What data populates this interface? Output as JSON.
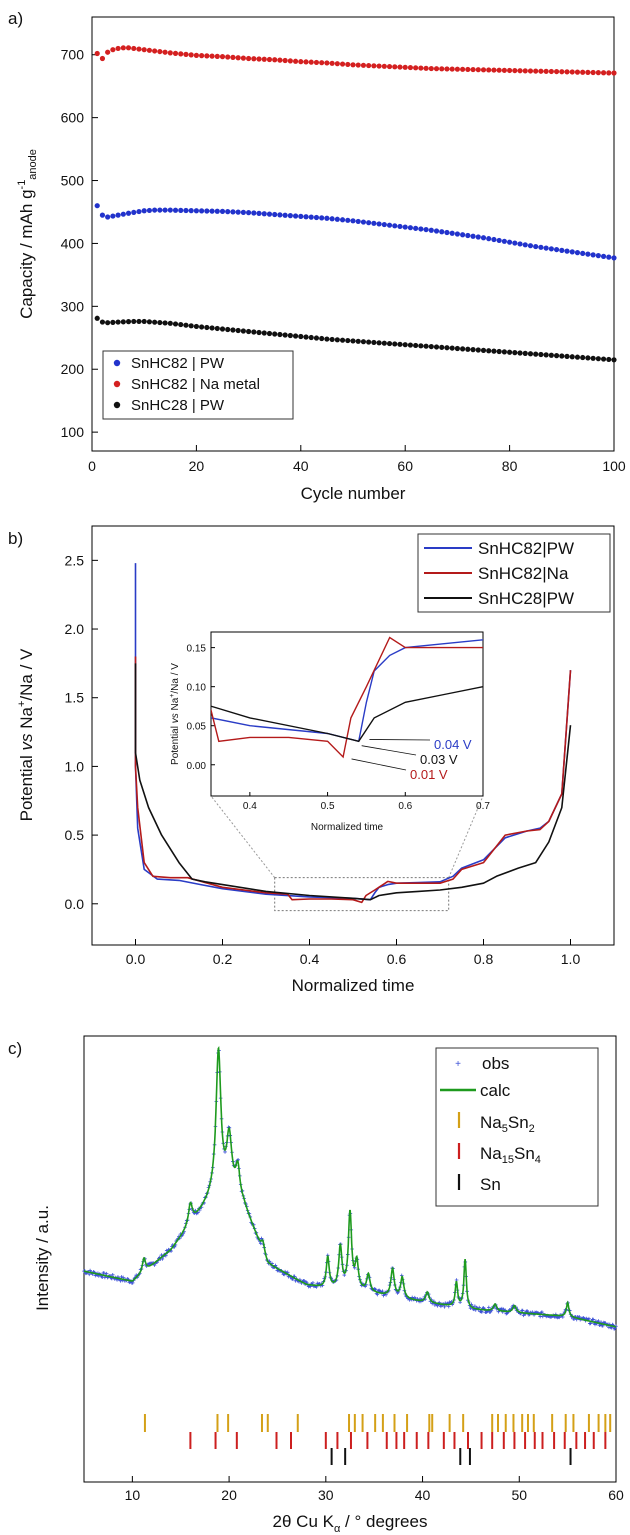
{
  "chart_data": [
    {
      "panel_label": "a)",
      "type": "scatter",
      "xlabel": "Cycle number",
      "ylabel_parts": [
        "Capacity / mAh g",
        "-1",
        "anode"
      ],
      "xlim": [
        0,
        100
      ],
      "ylim": [
        70,
        760
      ],
      "xticks": [
        0,
        20,
        40,
        60,
        80,
        100
      ],
      "yticks": [
        100,
        200,
        300,
        400,
        500,
        600,
        700
      ],
      "legend_position": "bottom-left",
      "series": [
        {
          "name": "SnHC82 | PW",
          "color": "#2233cc",
          "x": [
            1,
            2,
            3,
            5,
            7,
            10,
            12,
            15,
            20,
            25,
            30,
            35,
            40,
            45,
            50,
            55,
            60,
            65,
            70,
            75,
            80,
            85,
            90,
            95,
            100
          ],
          "y": [
            460,
            445,
            442,
            445,
            448,
            452,
            453,
            453,
            452,
            451,
            449,
            446,
            443,
            440,
            436,
            431,
            426,
            421,
            415,
            409,
            402,
            395,
            389,
            383,
            377
          ]
        },
        {
          "name": "SnHC82 | Na metal",
          "color": "#d42020",
          "x": [
            1,
            2,
            3,
            4,
            5,
            6,
            7,
            8,
            10,
            12,
            15,
            20,
            25,
            30,
            35,
            40,
            45,
            50,
            55,
            60,
            65,
            70,
            75,
            80,
            85,
            90,
            95,
            100
          ],
          "y": [
            702,
            694,
            704,
            708,
            710,
            711,
            711,
            710,
            708,
            706,
            703,
            699,
            697,
            694,
            692,
            689,
            687,
            684,
            682,
            680,
            678,
            677,
            676,
            675,
            674,
            673,
            672,
            671
          ]
        },
        {
          "name": "SnHC28 | PW",
          "color": "#111111",
          "x": [
            1,
            2,
            3,
            5,
            8,
            10,
            15,
            20,
            25,
            30,
            35,
            40,
            45,
            50,
            55,
            60,
            65,
            70,
            75,
            80,
            85,
            90,
            95,
            100
          ],
          "y": [
            281,
            275,
            274,
            275,
            276,
            276,
            273,
            268,
            264,
            260,
            256,
            252,
            248,
            245,
            242,
            239,
            236,
            233,
            230,
            227,
            224,
            221,
            218,
            215
          ]
        }
      ]
    },
    {
      "panel_label": "b)",
      "type": "line",
      "xlabel": "Normalized time",
      "ylabel_parts": [
        "Potential ",
        "vs",
        " Na",
        "+",
        "/Na / V"
      ],
      "xlim": [
        -0.1,
        1.1
      ],
      "ylim": [
        -0.3,
        2.75
      ],
      "xticks": [
        0.0,
        0.2,
        0.4,
        0.6,
        0.8,
        1.0
      ],
      "yticks": [
        0.0,
        0.5,
        1.0,
        1.5,
        2.0,
        2.5
      ],
      "legend_position": "top-right",
      "series": [
        {
          "name": "SnHC82|PW",
          "color": "#2a3cc6",
          "x": [
            0.0,
            0.0,
            0.005,
            0.02,
            0.05,
            0.1,
            0.15,
            0.2,
            0.3,
            0.4,
            0.5,
            0.54,
            0.55,
            0.56,
            0.58,
            0.6,
            0.65,
            0.7,
            0.73,
            0.75,
            0.8,
            0.85,
            0.9,
            0.93,
            0.95,
            0.98,
            1.0
          ],
          "y": [
            2.48,
            1.0,
            0.55,
            0.25,
            0.18,
            0.17,
            0.14,
            0.11,
            0.07,
            0.05,
            0.04,
            0.03,
            0.08,
            0.12,
            0.14,
            0.15,
            0.155,
            0.16,
            0.2,
            0.26,
            0.32,
            0.48,
            0.53,
            0.55,
            0.6,
            0.8,
            1.7
          ]
        },
        {
          "name": "SnHC82|Na",
          "color": "#b41a1a",
          "x": [
            0.0,
            0.0,
            0.005,
            0.02,
            0.04,
            0.08,
            0.12,
            0.2,
            0.3,
            0.35,
            0.36,
            0.4,
            0.45,
            0.5,
            0.52,
            0.53,
            0.55,
            0.58,
            0.6,
            0.65,
            0.7,
            0.73,
            0.75,
            0.8,
            0.85,
            0.9,
            0.93,
            0.95,
            0.98,
            1.0
          ],
          "y": [
            1.8,
            1.0,
            0.7,
            0.3,
            0.2,
            0.19,
            0.19,
            0.12,
            0.08,
            0.07,
            0.03,
            0.035,
            0.035,
            0.03,
            0.01,
            0.06,
            0.1,
            0.163,
            0.15,
            0.15,
            0.15,
            0.18,
            0.25,
            0.3,
            0.5,
            0.53,
            0.54,
            0.6,
            0.8,
            1.7
          ]
        },
        {
          "name": "SnHC28|PW",
          "color": "#111111",
          "x": [
            0.0,
            0.0,
            0.01,
            0.03,
            0.06,
            0.1,
            0.13,
            0.16,
            0.2,
            0.3,
            0.4,
            0.5,
            0.54,
            0.56,
            0.6,
            0.65,
            0.7,
            0.75,
            0.8,
            0.83,
            0.88,
            0.92,
            0.95,
            0.98,
            1.0
          ],
          "y": [
            1.75,
            1.1,
            0.9,
            0.7,
            0.5,
            0.3,
            0.18,
            0.16,
            0.14,
            0.09,
            0.06,
            0.04,
            0.03,
            0.06,
            0.08,
            0.09,
            0.1,
            0.12,
            0.15,
            0.2,
            0.26,
            0.3,
            0.45,
            0.7,
            1.3
          ]
        }
      ],
      "zoom_box": {
        "x": [
          0.32,
          0.72
        ],
        "y": [
          -0.05,
          0.19
        ]
      },
      "inset": {
        "xlabel": "Normalized time",
        "ylabel_parts": [
          "Potential ",
          "vs",
          " Na",
          "+",
          "/Na / V"
        ],
        "xlim": [
          0.35,
          0.7
        ],
        "ylim": [
          -0.04,
          0.17
        ],
        "xticks": [
          0.4,
          0.5,
          0.6,
          0.7
        ],
        "yticks": [
          0.0,
          0.05,
          0.1,
          0.15
        ],
        "annotations": [
          {
            "text": "0.04 V",
            "color": "#2a3cc6",
            "target": [
              0.55,
              0.035
            ]
          },
          {
            "text": "0.03 V",
            "color": "#111111",
            "target": [
              0.54,
              0.027
            ]
          },
          {
            "text": "0.01 V",
            "color": "#b41a1a",
            "target": [
              0.527,
              0.01
            ]
          }
        ]
      }
    },
    {
      "panel_label": "c)",
      "type": "line",
      "xlabel_parts": [
        "2θ Cu K",
        "α",
        " / ° degrees"
      ],
      "ylabel": "Intensity / a.u.",
      "xlim": [
        5,
        60
      ],
      "ylim": [
        0,
        100
      ],
      "xticks": [
        10,
        20,
        30,
        40,
        50,
        60
      ],
      "legend_position": "top-right",
      "baseline": {
        "x": [
          5,
          10,
          14,
          16.5,
          18.2,
          20.2,
          21.5,
          24,
          26,
          28,
          30,
          34,
          38,
          45,
          50,
          55,
          60
        ],
        "y": [
          37,
          34,
          43,
          52,
          58,
          61,
          56,
          39,
          36,
          33,
          32,
          31,
          29,
          26,
          25,
          24,
          21
        ]
      },
      "peaks": [
        {
          "pos": 11.2,
          "h": 4,
          "w": 0.2
        },
        {
          "pos": 16.0,
          "h": 6,
          "w": 0.25
        },
        {
          "pos": 18.9,
          "h": 41,
          "w": 0.3
        },
        {
          "pos": 20.0,
          "h": 14,
          "w": 0.3
        },
        {
          "pos": 20.9,
          "h": 8,
          "w": 0.25
        },
        {
          "pos": 23.5,
          "h": 3,
          "w": 0.2
        },
        {
          "pos": 30.2,
          "h": 9,
          "w": 0.18
        },
        {
          "pos": 31.5,
          "h": 12,
          "w": 0.2
        },
        {
          "pos": 32.5,
          "h": 22,
          "w": 0.2
        },
        {
          "pos": 33.2,
          "h": 8,
          "w": 0.2
        },
        {
          "pos": 34.4,
          "h": 5,
          "w": 0.2
        },
        {
          "pos": 36.9,
          "h": 8,
          "w": 0.2
        },
        {
          "pos": 37.9,
          "h": 6,
          "w": 0.2
        },
        {
          "pos": 40.5,
          "h": 3,
          "w": 0.2
        },
        {
          "pos": 43.5,
          "h": 7,
          "w": 0.15
        },
        {
          "pos": 44.4,
          "h": 14,
          "w": 0.15
        },
        {
          "pos": 47.5,
          "h": 2,
          "w": 0.2
        },
        {
          "pos": 49.5,
          "h": 2,
          "w": 0.2
        },
        {
          "pos": 55.0,
          "h": 4,
          "w": 0.15
        }
      ],
      "series": [
        {
          "name": "obs",
          "color": "#3a4fd6",
          "style": "markers"
        },
        {
          "name": "calc",
          "color": "#1e9a1e",
          "style": "line"
        }
      ],
      "reflections": [
        {
          "name_parts": [
            "Na",
            "5",
            "Sn",
            "2"
          ],
          "color": "#d4a017",
          "row": 1,
          "positions": [
            11.3,
            18.8,
            19.9,
            23.4,
            24.0,
            27.1,
            32.4,
            33.0,
            33.8,
            35.1,
            35.9,
            37.1,
            38.4,
            40.7,
            41.0,
            42.8,
            44.2,
            47.2,
            47.8,
            48.6,
            49.4,
            50.3,
            50.9,
            51.5,
            53.4,
            54.8,
            55.6,
            57.2,
            58.2,
            58.9,
            59.4
          ]
        },
        {
          "name_parts": [
            "Na",
            "15",
            "Sn",
            "4"
          ],
          "color": "#cc1f1f",
          "row": 2,
          "positions": [
            16.0,
            18.6,
            20.8,
            24.9,
            26.4,
            30.0,
            31.2,
            32.6,
            34.3,
            36.3,
            37.3,
            38.1,
            39.4,
            40.6,
            42.2,
            43.3,
            44.7,
            46.1,
            47.2,
            48.4,
            49.5,
            50.6,
            51.6,
            52.4,
            53.6,
            54.7,
            55.9,
            56.8,
            57.7,
            58.9
          ]
        },
        {
          "name_parts": [
            "Sn"
          ],
          "color": "#111111",
          "row": 3,
          "positions": [
            30.6,
            32.0,
            43.9,
            44.9,
            55.3
          ]
        }
      ]
    }
  ]
}
